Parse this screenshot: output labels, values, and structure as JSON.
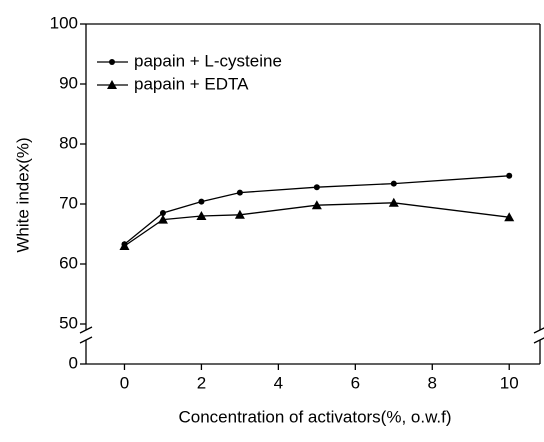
{
  "chart_data": {
    "type": "line",
    "xlabel": "Concentration of activators(%, o.w.f)",
    "ylabel": "White index(%)",
    "x": [
      0,
      1,
      2,
      3,
      5,
      7,
      10
    ],
    "series": [
      {
        "name": "papain + L-cysteine",
        "color": "#000000",
        "marker": "circle",
        "values": [
          63.3,
          68.5,
          70.4,
          71.9,
          72.8,
          73.4,
          74.7
        ]
      },
      {
        "name": "papain + EDTA",
        "color": "#000000",
        "marker": "triangle",
        "values": [
          63.0,
          67.4,
          68.0,
          68.2,
          69.8,
          70.2,
          67.8
        ]
      }
    ],
    "xlim": [
      -1,
      10.8
    ],
    "xticks": [
      0,
      2,
      4,
      6,
      8,
      10
    ],
    "ylim": [
      0,
      100
    ],
    "yticks": [
      0,
      50,
      60,
      70,
      80,
      90,
      100
    ],
    "axis_break": [
      0,
      50
    ],
    "legend": "upper left"
  }
}
